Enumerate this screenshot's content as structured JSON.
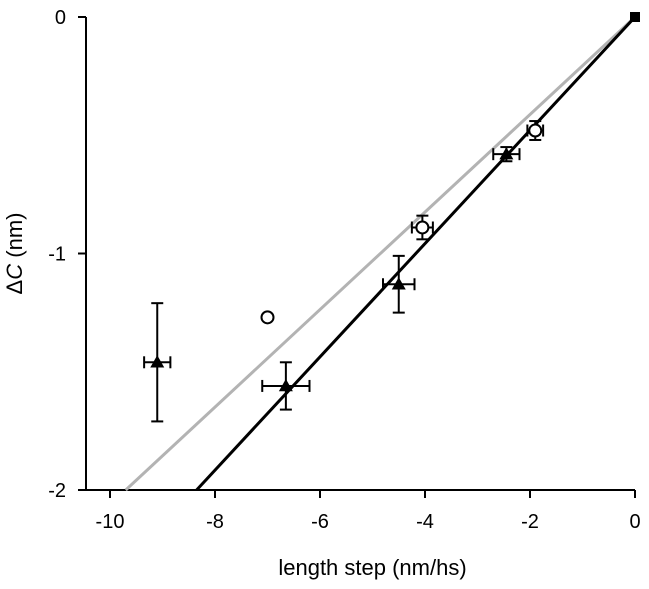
{
  "chart_data": {
    "type": "scatter",
    "xlabel": "length step (nm/hs)",
    "ylabel_prefix": "Δ",
    "ylabel_var": "C",
    "ylabel_suffix": " (nm)",
    "xlim": [
      -10,
      0
    ],
    "ylim": [
      -2,
      0
    ],
    "xticks": [
      -10,
      -8,
      -6,
      -4,
      -2,
      0
    ],
    "yticks": [
      0,
      -1,
      -2
    ],
    "grid": false,
    "series": [
      {
        "marker": "triangle-filled",
        "color": "#000000",
        "points": [
          {
            "x": -9.1,
            "y": -1.46,
            "xerr": 0.25,
            "yerr": 0.25
          },
          {
            "x": -6.65,
            "y": -1.56,
            "xerr": 0.45,
            "yerr": 0.1
          },
          {
            "x": -4.5,
            "y": -1.13,
            "xerr": 0.3,
            "yerr": 0.12
          },
          {
            "x": -2.45,
            "y": -0.58,
            "xerr": 0.25,
            "yerr": 0.03
          }
        ]
      },
      {
        "marker": "circle-open",
        "color": "#000000",
        "points": [
          {
            "x": -7.0,
            "y": -1.27,
            "xerr": 0,
            "yerr": 0
          },
          {
            "x": -4.05,
            "y": -0.89,
            "xerr": 0.2,
            "yerr": 0.05
          },
          {
            "x": -1.9,
            "y": -0.48,
            "xerr": 0.15,
            "yerr": 0.04
          }
        ]
      },
      {
        "marker": "square-filled",
        "color": "#000000",
        "points": [
          {
            "x": 0,
            "y": 0,
            "xerr": 0,
            "yerr": 0
          }
        ]
      }
    ],
    "lines": [
      {
        "color": "#000000",
        "x": [
          -8.35,
          0
        ],
        "y": [
          -2,
          0
        ]
      },
      {
        "color": "#b3b3b3",
        "x": [
          -9.7,
          0
        ],
        "y": [
          -2,
          0
        ]
      }
    ]
  }
}
